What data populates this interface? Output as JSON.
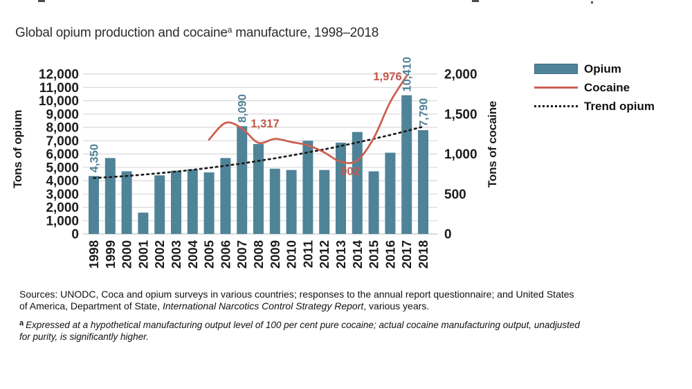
{
  "page": {
    "title_prefix": "Global opium production and cocaine",
    "title_sup": "a",
    "title_suffix": " manufacture, 1998–2018"
  },
  "chart_data": {
    "type": "bar",
    "title": "Global opium production and cocaine manufacture, 1998–2018",
    "categories": [
      "1998",
      "1999",
      "2000",
      "2001",
      "2002",
      "2003",
      "2004",
      "2005",
      "2006",
      "2007",
      "2008",
      "2009",
      "2010",
      "2011",
      "2012",
      "2013",
      "2014",
      "2015",
      "2016",
      "2017",
      "2018"
    ],
    "series": [
      {
        "name": "Opium",
        "type": "bar",
        "axis": "left",
        "values": [
          4350,
          5700,
          4700,
          1600,
          4400,
          4750,
          4850,
          4620,
          5700,
          8090,
          6750,
          4900,
          4800,
          7000,
          4800,
          6850,
          7650,
          4700,
          6100,
          10410,
          7790
        ]
      },
      {
        "name": "Cocaine",
        "type": "line",
        "axis": "right",
        "start_year": "2005",
        "values": [
          1180,
          1390,
          1320,
          1140,
          1190,
          1150,
          1110,
          1020,
          902,
          920,
          1200,
          1650,
          1976
        ]
      },
      {
        "name": "Trend opium",
        "type": "dashed_line",
        "axis": "left",
        "values": [
          4200,
          4270,
          4350,
          4450,
          4560,
          4680,
          4810,
          4960,
          5120,
          5290,
          5480,
          5680,
          5890,
          6120,
          6350,
          6600,
          6870,
          7140,
          7430,
          7730,
          8050
        ]
      }
    ],
    "left_axis": {
      "label": "Tons of opium",
      "min": 0,
      "max": 12000,
      "tick_step": 1000,
      "tick_labels": [
        "0",
        "1,000",
        "2,000",
        "3,000",
        "4,000",
        "5,000",
        "6,000",
        "7,000",
        "8,000",
        "9,000",
        "10,000",
        "11,000",
        "12,000"
      ]
    },
    "right_axis": {
      "label": "Tons of cocaine",
      "min": 0,
      "max": 2000,
      "tick_step": 500,
      "tick_labels": [
        "0",
        "500",
        "1,000",
        "1,500",
        "2,000"
      ]
    },
    "bar_value_labels": [
      {
        "year": "1998",
        "text": "4,350"
      },
      {
        "year": "2007",
        "text": "8,090"
      },
      {
        "year": "2017",
        "text": "10,410"
      },
      {
        "year": "2018",
        "text": "7,790"
      }
    ],
    "line_value_labels": [
      {
        "text": "1,317",
        "x": 383,
        "y": 104
      },
      {
        "text": "902",
        "x": 506,
        "y": 173
      },
      {
        "text": "1,976",
        "x": 560,
        "y": 36
      }
    ],
    "legend": [
      {
        "label": "Opium",
        "swatch": "bar"
      },
      {
        "label": "Cocaine",
        "swatch": "line"
      },
      {
        "label": "Trend opium",
        "swatch": "dashed"
      }
    ],
    "legend_position": "top-right",
    "grid": true,
    "colors": {
      "bar": "#4f8398",
      "cocaine_line": "#cc6052",
      "cocaine_label": "#c4584a",
      "trend": "#1b1b1b",
      "grid": "#d8d8d8",
      "axis_line": "#c2c2c2",
      "axis_text": "#1c1c1c",
      "bar_label": "#4f8398"
    }
  },
  "sources": {
    "line1": "Sources: UNODC, Coca and opium surveys in various countries; responses to the annual report questionnaire; and United States",
    "line2_prefix": "of America, Department of State, ",
    "line2_italic": "International Narcotics Control Strategy Report",
    "line2_suffix": ", various years."
  },
  "footnote": {
    "sup": "a",
    "line1": "Expressed at a hypothetical manufacturing output level of 100 per cent pure cocaine; actual cocaine manufacturing output, unadjusted",
    "line2": "for purity, is significantly higher."
  }
}
